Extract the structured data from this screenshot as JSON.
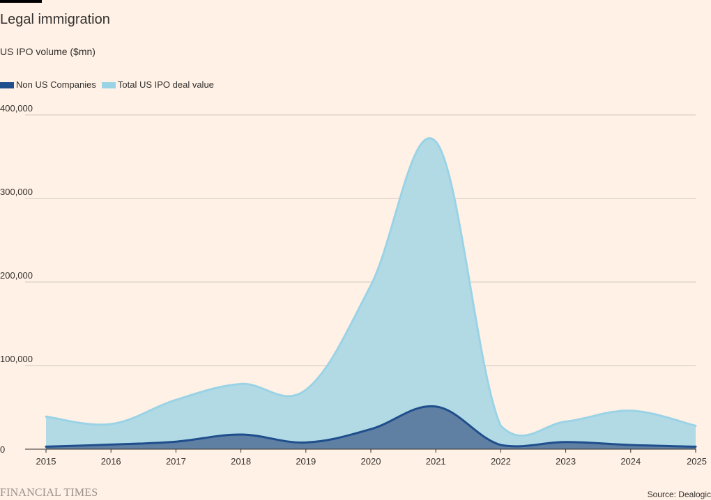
{
  "header": {
    "title": "Legal immigration",
    "subtitle": "US IPO volume ($mn)"
  },
  "footer": {
    "brand": "FINANCIAL TIMES",
    "source": "Source: Dealogic"
  },
  "colors": {
    "background": "#fff1e5",
    "non_us_line": "#1f4e8c",
    "non_us_fill": "#5f7fa3",
    "total_line": "#9bd3e6",
    "total_fill": "#b2dae5",
    "gridline": "#cfc6bd",
    "axis": "#33302e"
  },
  "chart_data": {
    "type": "area",
    "title": "Legal immigration",
    "subtitle": "US IPO volume ($mn)",
    "xlabel": "",
    "ylabel": "",
    "x": [
      2015,
      2016,
      2017,
      2018,
      2019,
      2020,
      2021,
      2022,
      2023,
      2024,
      2025
    ],
    "x_tick_labels": [
      "2015",
      "2016",
      "2017",
      "2018",
      "2019",
      "2020",
      "2021",
      "2022",
      "2023",
      "2024",
      "2025"
    ],
    "y_ticks": [
      0,
      100000,
      200000,
      300000,
      400000
    ],
    "y_tick_labels": [
      "0",
      "100,000",
      "200,000",
      "300,000",
      "400,000"
    ],
    "ylim": [
      0,
      400000
    ],
    "grid": true,
    "legend_position": "top-left",
    "overlay": true,
    "series": [
      {
        "name": "Non US Companies",
        "values": [
          3000,
          5500,
          9000,
          17500,
          8000,
          24000,
          51000,
          5000,
          8500,
          5000,
          3000
        ]
      },
      {
        "name": "Total US IPO deal value",
        "values": [
          39000,
          30000,
          59000,
          78000,
          71000,
          196000,
          368000,
          28000,
          33000,
          46000,
          28000
        ]
      }
    ]
  }
}
